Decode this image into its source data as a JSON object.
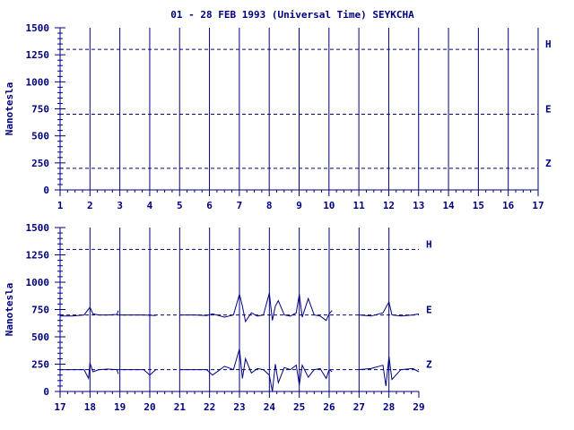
{
  "chart_data": {
    "type": "line",
    "title": "01 - 28 FEB 1993 (Universal Time) SEYKCHA",
    "ylabel": "Nanotesla",
    "ylim": [
      0,
      1500
    ],
    "yticks": [
      "0",
      "250",
      "500",
      "750",
      "1000",
      "1250",
      "1500"
    ],
    "component_labels": [
      "H",
      "E",
      "Z"
    ],
    "panels": [
      {
        "xlim": [
          1,
          17
        ],
        "xticks": [
          "1",
          "2",
          "3",
          "4",
          "5",
          "6",
          "7",
          "8",
          "9",
          "10",
          "11",
          "12",
          "13",
          "14",
          "15",
          "16",
          "17"
        ],
        "reference_levels": [
          1300,
          700,
          200
        ],
        "labels_shown": [
          "H",
          "E",
          "Z"
        ],
        "series": []
      },
      {
        "xlim": [
          17,
          29
        ],
        "xticks": [
          "17",
          "18",
          "19",
          "20",
          "21",
          "22",
          "23",
          "24",
          "25",
          "26",
          "27",
          "28",
          "29"
        ],
        "reference_levels": [
          1300,
          700,
          200
        ],
        "labels_shown": [
          "H",
          "E",
          "Z"
        ],
        "series": [
          {
            "component": "E",
            "baseline": 700,
            "segments": [
              {
                "x": [
                  17.0,
                  17.4,
                  17.8,
                  18.0,
                  18.1,
                  18.3,
                  18.6,
                  18.9,
                  18.95
                ],
                "y": [
                  690,
                  690,
                  700,
                  770,
                  710,
                  700,
                  700,
                  705,
                  740
                ]
              },
              {
                "x": [
                  19.0,
                  19.4,
                  19.8,
                  20.2
                ],
                "y": [
                  700,
                  700,
                  700,
                  695
                ]
              },
              {
                "x": [
                  21.0,
                  21.5,
                  21.9,
                  22.1,
                  22.5,
                  22.8,
                  23.0,
                  23.1,
                  23.2,
                  23.4,
                  23.6,
                  23.8,
                  24.0,
                  24.1,
                  24.2,
                  24.3,
                  24.5,
                  24.7,
                  24.9,
                  25.0,
                  25.1,
                  25.3,
                  25.5,
                  25.7,
                  25.9,
                  26.0,
                  26.1
                ],
                "y": [
                  700,
                  700,
                  695,
                  710,
                  680,
                  700,
                  890,
                  780,
                  640,
                  720,
                  690,
                  700,
                  900,
                  650,
                  780,
                  830,
                  700,
                  690,
                  720,
                  890,
                  680,
                  850,
                  700,
                  690,
                  650,
                  710,
                  740
                ]
              },
              {
                "x": [
                  27.0,
                  27.4,
                  27.8,
                  28.0,
                  28.1,
                  28.4,
                  28.8,
                  29.0
                ],
                "y": [
                  700,
                  690,
                  720,
                  820,
                  700,
                  690,
                  700,
                  710
                ]
              }
            ]
          },
          {
            "component": "Z",
            "baseline": 200,
            "segments": [
              {
                "x": [
                  17.0,
                  17.4,
                  17.8,
                  17.95,
                  18.0,
                  18.1,
                  18.3,
                  18.6,
                  18.9,
                  18.95
                ],
                "y": [
                  200,
                  200,
                  200,
                  120,
                  260,
                  180,
                  200,
                  205,
                  200,
                  160
                ]
              },
              {
                "x": [
                  19.0,
                  19.4,
                  19.8,
                  20.0,
                  20.2
                ],
                "y": [
                  200,
                  200,
                  200,
                  150,
                  200
                ]
              },
              {
                "x": [
                  21.0,
                  21.5,
                  21.9,
                  22.1,
                  22.5,
                  22.8,
                  23.0,
                  23.1,
                  23.2,
                  23.4,
                  23.6,
                  23.8,
                  24.0,
                  24.1,
                  24.2,
                  24.3,
                  24.5,
                  24.7,
                  24.9,
                  25.0,
                  25.1,
                  25.3,
                  25.5,
                  25.7,
                  25.9,
                  26.0,
                  26.1
                ],
                "y": [
                  200,
                  200,
                  200,
                  150,
                  230,
                  200,
                  390,
                  120,
                  300,
                  170,
                  210,
                  200,
                  150,
                  0,
                  250,
                  80,
                  220,
                  200,
                  240,
                  60,
                  240,
                  130,
                  200,
                  210,
                  120,
                  200,
                  180
                ]
              },
              {
                "x": [
                  27.0,
                  27.4,
                  27.8,
                  27.9,
                  28.0,
                  28.1,
                  28.4,
                  28.8,
                  29.0
                ],
                "y": [
                  200,
                  210,
                  240,
                  50,
                  320,
                  110,
                  200,
                  210,
                  180
                ]
              }
            ]
          }
        ]
      }
    ]
  }
}
